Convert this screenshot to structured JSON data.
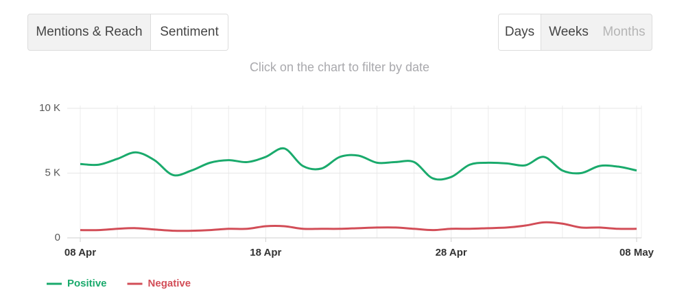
{
  "tabs": [
    "Mentions & Reach",
    "Sentiment"
  ],
  "periods": [
    "Days",
    "Weeks",
    "Months"
  ],
  "hint": "Click on the chart to filter by date",
  "chart_data": {
    "type": "line",
    "categories": [
      "08 Apr",
      null,
      null,
      null,
      null,
      null,
      null,
      null,
      null,
      null,
      "18 Apr",
      null,
      null,
      null,
      null,
      null,
      null,
      null,
      null,
      null,
      "28 Apr",
      null,
      null,
      null,
      null,
      null,
      null,
      null,
      null,
      null,
      "08 May"
    ],
    "series": [
      {
        "name": "Positive",
        "color": "#1aaa6c",
        "values": [
          5700,
          5650,
          6100,
          6600,
          6000,
          4850,
          5200,
          5800,
          6000,
          5850,
          6250,
          6900,
          5550,
          5350,
          6250,
          6350,
          5800,
          5850,
          5850,
          4600,
          4700,
          5650,
          5800,
          5750,
          5600,
          6250,
          5200,
          5000,
          5550,
          5500,
          5200
        ]
      },
      {
        "name": "Negative",
        "color": "#d24d57",
        "values": [
          600,
          600,
          700,
          750,
          650,
          550,
          550,
          600,
          700,
          700,
          900,
          900,
          700,
          700,
          700,
          750,
          800,
          800,
          700,
          600,
          700,
          700,
          750,
          800,
          950,
          1200,
          1100,
          800,
          800,
          700,
          700
        ]
      }
    ],
    "ylim": [
      0,
      10000
    ],
    "yticks": [
      0,
      {
        "value": 5000,
        "label": "5 K"
      },
      {
        "value": 10000,
        "label": "10 K"
      }
    ],
    "grid": true,
    "legend": "bottom-left"
  }
}
